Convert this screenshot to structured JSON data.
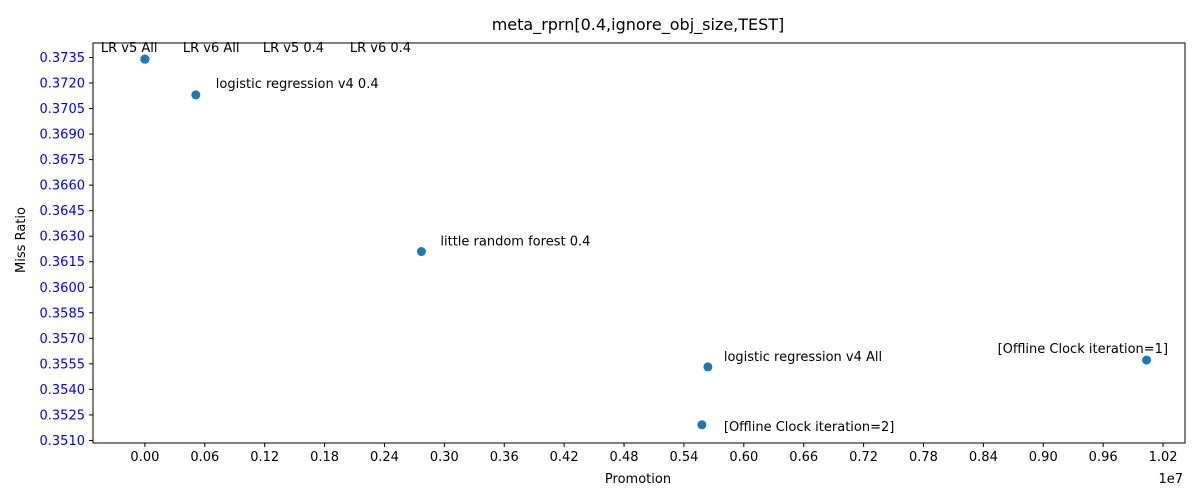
{
  "chart_data": {
    "type": "scatter",
    "title": "meta_rprn[0.4,ignore_obj_size,TEST]",
    "xlabel": "Promotion",
    "ylabel": "Miss Ratio",
    "x_offset_label": "1e7",
    "xlim": [
      -0.052,
      1.042
    ],
    "ylim": [
      0.35085,
      0.37435
    ],
    "x_ticks": [
      0.0,
      0.06,
      0.12,
      0.18,
      0.24,
      0.3,
      0.36,
      0.42,
      0.48,
      0.54,
      0.6,
      0.66,
      0.72,
      0.78,
      0.84,
      0.9,
      0.96,
      1.02
    ],
    "x_tick_labels": [
      "0.00",
      "0.06",
      "0.12",
      "0.18",
      "0.24",
      "0.30",
      "0.36",
      "0.42",
      "0.48",
      "0.54",
      "0.60",
      "0.66",
      "0.72",
      "0.78",
      "0.84",
      "0.90",
      "0.96",
      "1.02"
    ],
    "y_ticks": [
      0.351,
      0.3525,
      0.354,
      0.3555,
      0.357,
      0.3585,
      0.36,
      0.3615,
      0.363,
      0.3645,
      0.366,
      0.3675,
      0.369,
      0.3705,
      0.372,
      0.3735
    ],
    "y_tick_labels": [
      "0.3510",
      "0.3525",
      "0.3540",
      "0.3555",
      "0.3570",
      "0.3585",
      "0.3600",
      "0.3615",
      "0.3630",
      "0.3645",
      "0.3660",
      "0.3675",
      "0.3690",
      "0.3705",
      "0.3720",
      "0.3735"
    ],
    "y_tick_label_color": "#0000ff",
    "point_color": "#1f77b4",
    "grid": false,
    "points": [
      {
        "label": "LR v5 All",
        "x": 0.0,
        "y": 0.3734
      },
      {
        "label": "LR v6 All",
        "x": 0.0,
        "y": 0.3734
      },
      {
        "label": "LR v5 0.4",
        "x": 0.0,
        "y": 0.3734
      },
      {
        "label": "LR v6 0.4",
        "x": 0.0,
        "y": 0.3734
      },
      {
        "label": "logistic regression v4 0.4",
        "x": 0.051,
        "y": 0.3713
      },
      {
        "label": "little random forest 0.4",
        "x": 0.277,
        "y": 0.3621
      },
      {
        "label": "logistic regression v4 All",
        "x": 0.564,
        "y": 0.35532
      },
      {
        "label": "[Offline Clock iteration=2]",
        "x": 0.558,
        "y": 0.35192
      },
      {
        "label": "[Offline Clock iteration=1]",
        "x": 1.0035,
        "y": 0.35572
      }
    ]
  }
}
